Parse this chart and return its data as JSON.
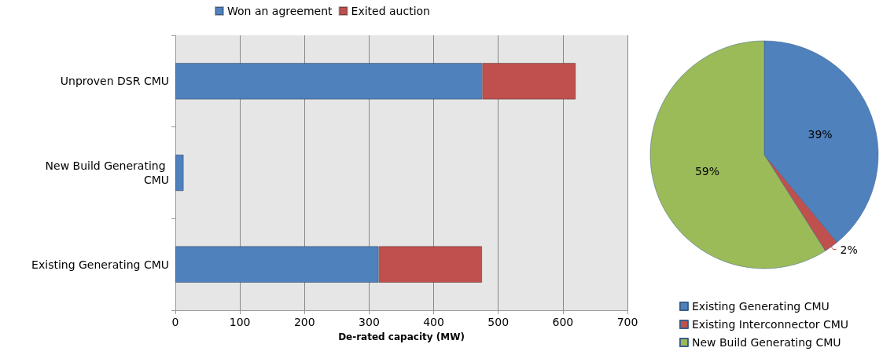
{
  "chart_data": [
    {
      "type": "bar",
      "orientation": "horizontal",
      "stacked": true,
      "categories": [
        "Unproven DSR CMU",
        "New Build Generating CMU",
        "Existing Generating CMU"
      ],
      "series": [
        {
          "name": "Won an agreement",
          "color": "#4f81bd",
          "values": [
            475,
            13,
            315
          ]
        },
        {
          "name": "Exited auction",
          "color": "#c0504d",
          "values": [
            145,
            null,
            160
          ]
        }
      ],
      "xlabel": "De-rated capacity (MW)",
      "xlim": [
        0,
        700
      ],
      "xticks": [
        0,
        100,
        200,
        300,
        400,
        500,
        600,
        700
      ],
      "grid": "x",
      "legend": "top"
    },
    {
      "type": "pie",
      "categories": [
        "Existing Generating CMU",
        "Existing Interconnector CMU",
        "New Build Generating CMU"
      ],
      "values": [
        39,
        2,
        59
      ],
      "colors": [
        "#4f81bd",
        "#c0504d",
        "#9bbb59"
      ],
      "value_labels": [
        "39%",
        "2%",
        "59%"
      ],
      "legend": "bottom"
    }
  ]
}
